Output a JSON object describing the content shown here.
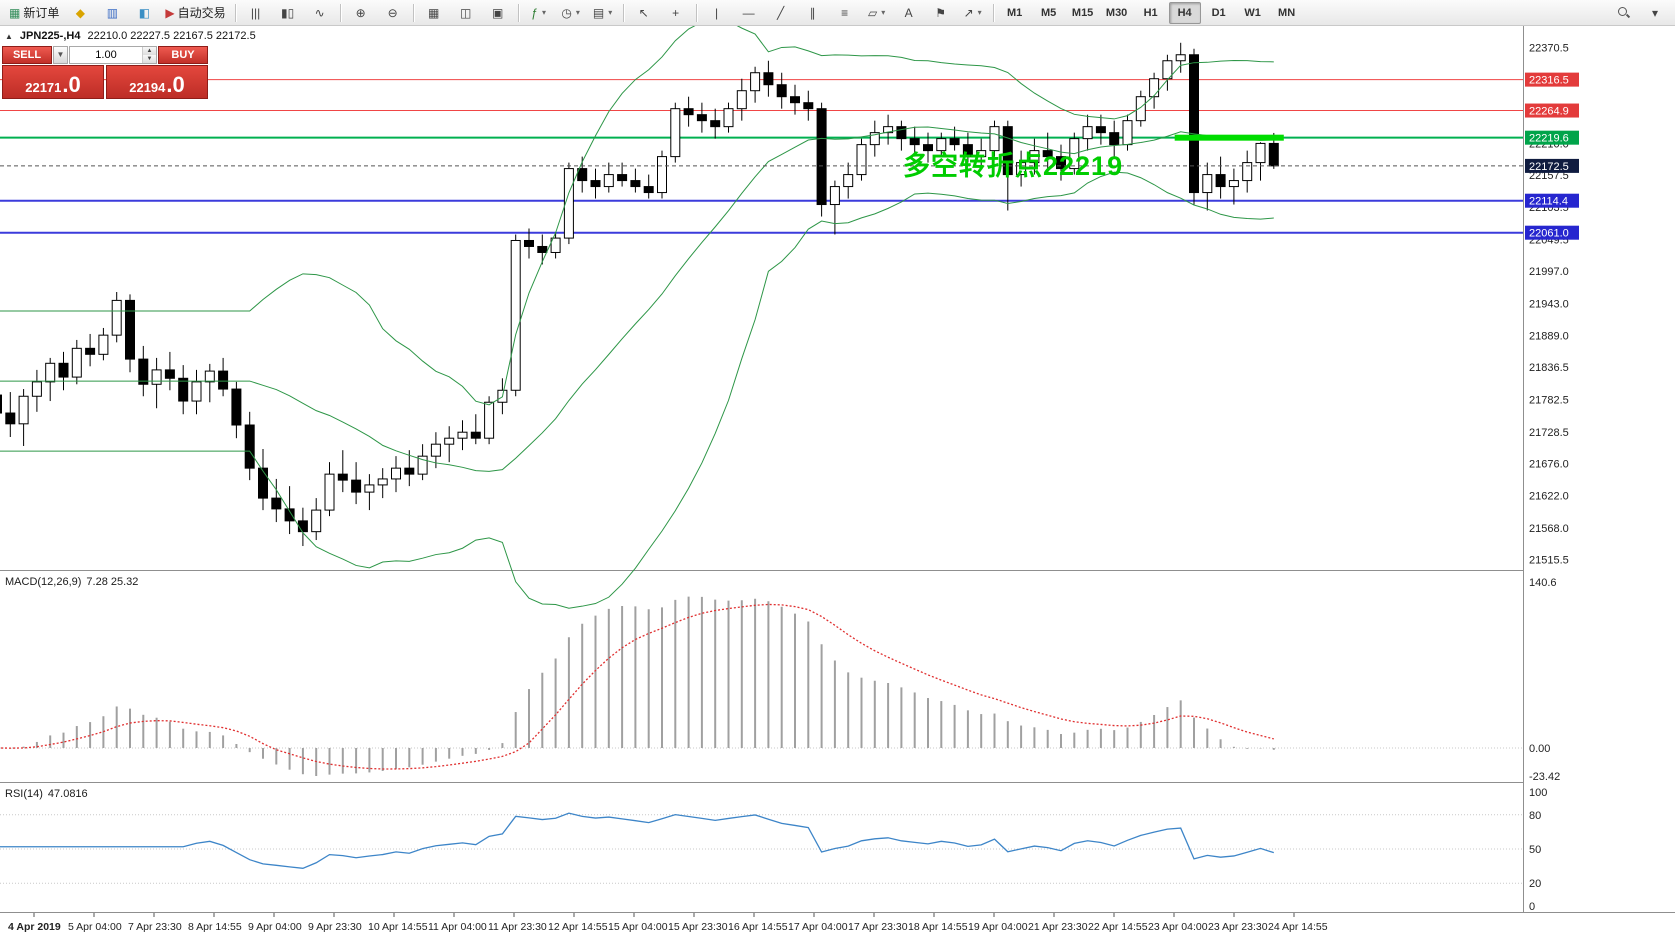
{
  "toolbar": {
    "groups": [
      {
        "items": [
          {
            "name": "new-order-button",
            "glyph": "▦",
            "glyph_color": "#2e8b57",
            "label": "新订单"
          },
          {
            "name": "alerts-icon",
            "glyph": "◆",
            "glyph_color": "#d9a400"
          },
          {
            "name": "market-watch-icon",
            "glyph": "▥",
            "glyph_color": "#3a6bc4"
          },
          {
            "name": "data-window-icon",
            "glyph": "◧",
            "glyph_color": "#3a8fc4"
          },
          {
            "name": "auto-trading-button",
            "glyph": "▶",
            "glyph_color": "#c43a3a",
            "label": "自动交易"
          }
        ]
      },
      {
        "items": [
          {
            "name": "bar-chart-button",
            "glyph": "|||",
            "glyph_color": "#444"
          },
          {
            "name": "candlestick-chart-button",
            "glyph": "▮▯",
            "glyph_color": "#444"
          },
          {
            "name": "line-chart-button",
            "glyph": "∿",
            "glyph_color": "#444"
          }
        ]
      },
      {
        "items": [
          {
            "name": "zoom-in-button",
            "glyph": "⊕",
            "glyph_color": "#444"
          },
          {
            "name": "zoom-out-button",
            "glyph": "⊖",
            "glyph_color": "#444"
          }
        ]
      },
      {
        "items": [
          {
            "name": "grid-button",
            "glyph": "▦",
            "glyph_color": "#444"
          },
          {
            "name": "tile-windows-button",
            "glyph": "◫",
            "glyph_color": "#444"
          },
          {
            "name": "cascade-windows-button",
            "glyph": "▣",
            "glyph_color": "#444"
          }
        ]
      },
      {
        "items": [
          {
            "name": "indicators-button",
            "glyph": "ƒ",
            "glyph_color": "#2e7d32",
            "caret": true
          },
          {
            "name": "periods-button",
            "glyph": "◷",
            "glyph_color": "#444",
            "caret": true
          },
          {
            "name": "templates-button",
            "glyph": "▤",
            "glyph_color": "#444",
            "caret": true
          }
        ]
      },
      {
        "items": [
          {
            "name": "cursor-button",
            "glyph": "↖",
            "glyph_color": "#444"
          },
          {
            "name": "crosshair-button",
            "glyph": "+",
            "glyph_color": "#444"
          }
        ]
      },
      {
        "items": [
          {
            "name": "vertical-line-button",
            "glyph": "|",
            "glyph_color": "#444"
          },
          {
            "name": "horizontal-line-button",
            "glyph": "—",
            "glyph_color": "#444"
          },
          {
            "name": "trendline-button",
            "glyph": "╱",
            "glyph_color": "#444"
          },
          {
            "name": "equidistant-channel-button",
            "glyph": "∥",
            "glyph_color": "#444"
          },
          {
            "name": "fibonacci-button",
            "glyph": "≡",
            "glyph_color": "#444"
          },
          {
            "name": "shapes-button",
            "glyph": "▱",
            "glyph_color": "#444",
            "caret": true
          },
          {
            "name": "text-button",
            "glyph": "A",
            "glyph_color": "#444"
          },
          {
            "name": "text-label-button",
            "glyph": "⚑",
            "glyph_color": "#444"
          },
          {
            "name": "arrows-button",
            "glyph": "↗",
            "glyph_color": "#444",
            "caret": true
          }
        ]
      }
    ],
    "timeframes": {
      "items": [
        "M1",
        "M5",
        "M15",
        "M30",
        "H1",
        "H4",
        "D1",
        "W1",
        "MN"
      ],
      "active": "H4"
    },
    "right_items": [
      {
        "name": "search-icon",
        "type": "search"
      },
      {
        "name": "toolbar-options-icon",
        "glyph": "▾"
      }
    ]
  },
  "chart_header": {
    "toggle": "▲",
    "symbol_period": "JPN225-,H4",
    "ohlc": "22210.0 22227.5 22167.5 22172.5"
  },
  "trade_panel": {
    "sell_label": "SELL",
    "buy_label": "BUY",
    "volume": "1.00",
    "sell_price": "22171",
    "sell_frac": ".0",
    "buy_price": "22194",
    "buy_frac": ".0"
  },
  "chart_data": {
    "type": "candlestick",
    "symbol": "JPN225-",
    "period": "H4",
    "colors": {
      "bull_body": "#ffffff",
      "bear_body": "#000000",
      "wick": "#000000",
      "bollinger": "#2d9647",
      "macd_bars": "#a0a0a0",
      "macd_signal": "#e03030",
      "rsi_line": "#3d85c8",
      "red_level": "#f04545",
      "green_level": "#00b050",
      "blue_level": "#3b3bdc",
      "current_price_box": "#101c40",
      "highlight": "#00dd00"
    },
    "candles": [
      [
        21790,
        21872,
        21742,
        21760
      ],
      [
        21760,
        21795,
        21720,
        21742
      ],
      [
        21742,
        21800,
        21705,
        21788
      ],
      [
        21788,
        21832,
        21762,
        21812
      ],
      [
        21812,
        21852,
        21780,
        21843
      ],
      [
        21843,
        21862,
        21798,
        21820
      ],
      [
        21820,
        21882,
        21808,
        21868
      ],
      [
        21868,
        21892,
        21838,
        21858
      ],
      [
        21858,
        21902,
        21848,
        21890
      ],
      [
        21890,
        21962,
        21878,
        21948
      ],
      [
        21948,
        21958,
        21828,
        21850
      ],
      [
        21850,
        21872,
        21788,
        21808
      ],
      [
        21808,
        21852,
        21768,
        21832
      ],
      [
        21832,
        21862,
        21798,
        21818
      ],
      [
        21818,
        21840,
        21758,
        21780
      ],
      [
        21780,
        21832,
        21758,
        21812
      ],
      [
        21812,
        21842,
        21778,
        21830
      ],
      [
        21830,
        21852,
        21788,
        21800
      ],
      [
        21800,
        21812,
        21718,
        21740
      ],
      [
        21740,
        21762,
        21648,
        21668
      ],
      [
        21668,
        21700,
        21598,
        21618
      ],
      [
        21618,
        21650,
        21578,
        21600
      ],
      [
        21600,
        21638,
        21558,
        21580
      ],
      [
        21580,
        21602,
        21538,
        21562
      ],
      [
        21562,
        21618,
        21548,
        21598
      ],
      [
        21598,
        21678,
        21588,
        21658
      ],
      [
        21658,
        21698,
        21628,
        21648
      ],
      [
        21648,
        21678,
        21608,
        21628
      ],
      [
        21628,
        21658,
        21598,
        21640
      ],
      [
        21640,
        21668,
        21618,
        21650
      ],
      [
        21650,
        21688,
        21628,
        21668
      ],
      [
        21668,
        21698,
        21638,
        21658
      ],
      [
        21658,
        21708,
        21648,
        21688
      ],
      [
        21688,
        21728,
        21668,
        21708
      ],
      [
        21708,
        21738,
        21678,
        21718
      ],
      [
        21718,
        21748,
        21698,
        21728
      ],
      [
        21728,
        21758,
        21708,
        21718
      ],
      [
        21718,
        21788,
        21708,
        21778
      ],
      [
        21778,
        21818,
        21758,
        21798
      ],
      [
        21798,
        22058,
        21788,
        22048
      ],
      [
        22048,
        22068,
        22018,
        22038
      ],
      [
        22038,
        22058,
        22008,
        22028
      ],
      [
        22028,
        22062,
        22018,
        22052
      ],
      [
        22052,
        22178,
        22042,
        22168
      ],
      [
        22168,
        22188,
        22128,
        22148
      ],
      [
        22148,
        22168,
        22118,
        22138
      ],
      [
        22138,
        22178,
        22128,
        22158
      ],
      [
        22158,
        22178,
        22138,
        22148
      ],
      [
        22148,
        22168,
        22128,
        22138
      ],
      [
        22138,
        22158,
        22118,
        22128
      ],
      [
        22128,
        22198,
        22118,
        22188
      ],
      [
        22188,
        22278,
        22178,
        22268
      ],
      [
        22268,
        22288,
        22238,
        22258
      ],
      [
        22258,
        22278,
        22228,
        22248
      ],
      [
        22248,
        22268,
        22218,
        22238
      ],
      [
        22238,
        22278,
        22228,
        22268
      ],
      [
        22268,
        22318,
        22248,
        22298
      ],
      [
        22298,
        22338,
        22278,
        22328
      ],
      [
        22328,
        22348,
        22288,
        22308
      ],
      [
        22308,
        22328,
        22268,
        22288
      ],
      [
        22288,
        22308,
        22258,
        22278
      ],
      [
        22278,
        22298,
        22248,
        22268
      ],
      [
        22268,
        22278,
        22088,
        22108
      ],
      [
        22108,
        22148,
        22058,
        22138
      ],
      [
        22138,
        22178,
        22118,
        22158
      ],
      [
        22158,
        22218,
        22148,
        22208
      ],
      [
        22208,
        22248,
        22188,
        22228
      ],
      [
        22228,
        22258,
        22208,
        22238
      ],
      [
        22238,
        22248,
        22198,
        22218
      ],
      [
        22218,
        22238,
        22188,
        22208
      ],
      [
        22208,
        22228,
        22178,
        22198
      ],
      [
        22198,
        22228,
        22188,
        22218
      ],
      [
        22218,
        22238,
        22198,
        22208
      ],
      [
        22208,
        22228,
        22178,
        22188
      ],
      [
        22188,
        22218,
        22168,
        22198
      ],
      [
        22198,
        22248,
        22188,
        22238
      ],
      [
        22238,
        22248,
        22098,
        22158
      ],
      [
        22158,
        22198,
        22138,
        22178
      ],
      [
        22178,
        22218,
        22158,
        22198
      ],
      [
        22198,
        22228,
        22168,
        22188
      ],
      [
        22188,
        22208,
        22148,
        22168
      ],
      [
        22168,
        22228,
        22158,
        22218
      ],
      [
        22218,
        22258,
        22198,
        22238
      ],
      [
        22238,
        22258,
        22208,
        22228
      ],
      [
        22228,
        22248,
        22188,
        22208
      ],
      [
        22208,
        22258,
        22198,
        22248
      ],
      [
        22248,
        22298,
        22238,
        22288
      ],
      [
        22288,
        22328,
        22268,
        22318
      ],
      [
        22318,
        22358,
        22298,
        22348
      ],
      [
        22348,
        22378,
        22328,
        22358
      ],
      [
        22358,
        22368,
        22108,
        22128
      ],
      [
        22128,
        22178,
        22098,
        22158
      ],
      [
        22158,
        22188,
        22118,
        22138
      ],
      [
        22138,
        22168,
        22108,
        22148
      ],
      [
        22148,
        22198,
        22128,
        22178
      ],
      [
        22178,
        22212,
        22148,
        22210
      ],
      [
        22210,
        22227.5,
        22167.5,
        22172.5
      ]
    ],
    "bollinger": {
      "period": 20,
      "deviation": 2
    },
    "price_range": {
      "max": 22406,
      "min": 21498
    },
    "y_axis_labels": [
      "22370.5",
      "22210.0",
      "22157.5",
      "22103.5",
      "22049.5",
      "21997.0",
      "21943.0",
      "21889.0",
      "21836.5",
      "21782.5",
      "21728.5",
      "21676.0",
      "21622.0",
      "21568.0",
      "21515.5"
    ],
    "hlines": [
      {
        "price": 22316.5,
        "label": "22316.5",
        "color": "#f04545",
        "box": "#e33b3b",
        "width": 1
      },
      {
        "price": 22264.9,
        "label": "22264.9",
        "color": "#f04545",
        "box": "#e33b3b",
        "width": 1
      },
      {
        "price": 22219.6,
        "label": "22219.6",
        "color": "#00b050",
        "box": "#00a44a",
        "width": 2
      },
      {
        "price": 22114.4,
        "label": "22114.4",
        "color": "#3b3bdc",
        "box": "#2626cf",
        "width": 2
      },
      {
        "price": 22061.0,
        "label": "22061.0",
        "color": "#3b3bdc",
        "box": "#2626cf",
        "width": 2
      }
    ],
    "current_price": {
      "price": 22172.5,
      "label": "22172.5",
      "box": "#101c40"
    },
    "highlight_segment": {
      "price": 22219.6,
      "from_candle": 89,
      "to_candle": 96,
      "thickness": 6
    },
    "annotation": {
      "text": "多空转折点22219",
      "color": "#00cc00"
    },
    "macd": {
      "label": "MACD(12,26,9)",
      "values": "7.28 25.32",
      "fast": 12,
      "slow": 26,
      "signal": 9,
      "axis_top": "140.6",
      "axis_zero": "0.00",
      "axis_bottom": "-23.42",
      "pos_max": 140.6,
      "neg_min": 23.42
    },
    "rsi": {
      "label": "RSI(14)",
      "value": "47.0816",
      "period": 14,
      "axis": [
        "100",
        "80",
        "50",
        "20",
        "0"
      ],
      "levels": [
        80,
        50,
        20
      ]
    },
    "time_labels": [
      "4 Apr 2019",
      "5 Apr 04:00",
      "7 Apr 23:30",
      "8 Apr 14:55",
      "9 Apr 04:00",
      "9 Apr 23:30",
      "10 Apr 14:55",
      "11 Apr 04:00",
      "11 Apr 23:30",
      "12 Apr 14:55",
      "15 Apr 04:00",
      "15 Apr 23:30",
      "16 Apr 14:55",
      "17 Apr 04:00",
      "17 Apr 23:30",
      "18 Apr 14:55",
      "19 Apr 04:00",
      "21 Apr 23:30",
      "22 Apr 14:55",
      "23 Apr 04:00",
      "23 Apr 23:30",
      "24 Apr 14:55"
    ]
  }
}
